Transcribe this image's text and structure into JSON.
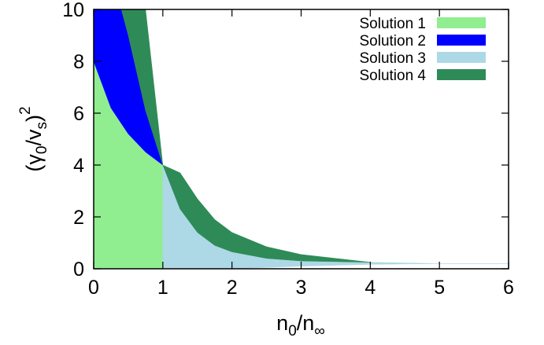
{
  "chart_data": {
    "type": "area",
    "title": "",
    "xlabel": {
      "base": "n",
      "sub1": "0",
      "mid": "/n",
      "sub2": "∞"
    },
    "ylabel": {
      "open": "(γ",
      "sub1": "0",
      "mid": "/v",
      "sub2": "s",
      "close": ")",
      "sup": "2"
    },
    "xlim": [
      0,
      6
    ],
    "ylim": [
      0,
      10
    ],
    "xticks": [
      0,
      1,
      2,
      3,
      4,
      5,
      6
    ],
    "yticks": [
      0,
      2,
      4,
      6,
      8,
      10
    ],
    "grid": false,
    "legend_position": "top-right",
    "series": [
      {
        "name": "Solution 1",
        "color": "#90ee90",
        "x": [
          0,
          0.25,
          0.5,
          0.75,
          1.0
        ],
        "lower": [
          0,
          0,
          0,
          0,
          0
        ],
        "upper": [
          8.0,
          6.2,
          5.2,
          4.5,
          4.0
        ]
      },
      {
        "name": "Solution 2",
        "color": "#0000ff",
        "x": [
          0,
          0.25,
          0.4,
          0.5,
          0.75,
          1.0
        ],
        "lower": [
          8.0,
          6.2,
          5.6,
          5.2,
          4.5,
          4.0
        ],
        "upper": [
          10,
          10,
          10,
          9.0,
          6.1,
          4.0
        ]
      },
      {
        "name": "Solution 3",
        "color": "#add8e6",
        "x": [
          1.0,
          1.25,
          1.5,
          1.75,
          2.0,
          2.5,
          3.0,
          4.0,
          5.0,
          6.0
        ],
        "lower": [
          0,
          0,
          0,
          0,
          0.01,
          0.05,
          0.1,
          0.17,
          0.2,
          0.2
        ],
        "upper": [
          4.0,
          2.3,
          1.4,
          0.9,
          0.65,
          0.4,
          0.3,
          0.25,
          0.2,
          0.2
        ]
      },
      {
        "name": "Solution 4",
        "color": "#2e8b57",
        "x": [
          0.4,
          0.5,
          0.75,
          1.0,
          1.25,
          1.5,
          1.75,
          2.0,
          2.5,
          3.0,
          4.0
        ],
        "lower": [
          10,
          9.0,
          6.1,
          4.0,
          2.3,
          1.4,
          0.9,
          0.65,
          0.4,
          0.3,
          0.25
        ],
        "upper": [
          10,
          10,
          10,
          4.0,
          3.7,
          2.7,
          1.9,
          1.4,
          0.85,
          0.55,
          0.25
        ]
      }
    ]
  }
}
